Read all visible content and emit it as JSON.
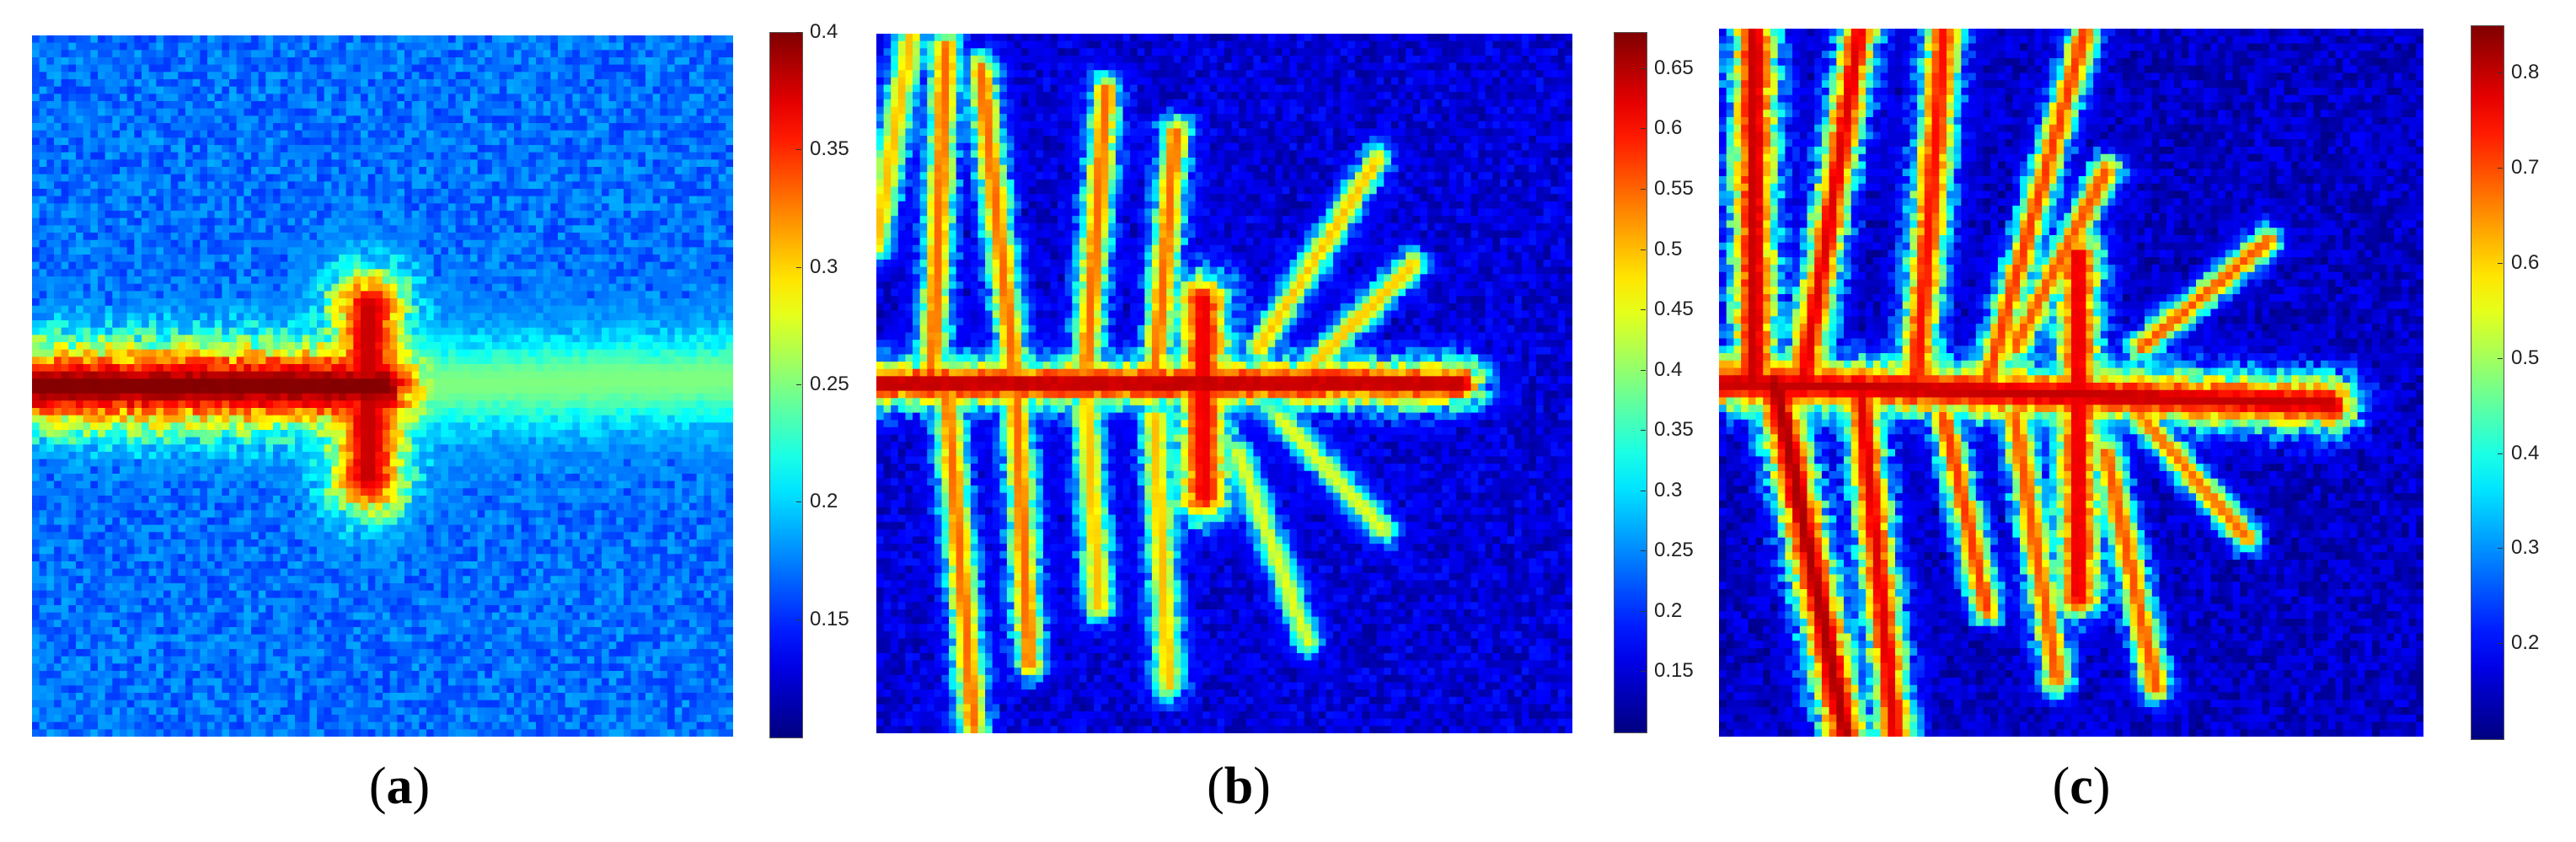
{
  "figure": {
    "panels": [
      {
        "caption_letter": "a"
      },
      {
        "caption_letter": "b"
      },
      {
        "caption_letter": "c"
      }
    ]
  },
  "chart_data": [
    {
      "type": "heatmap",
      "panel": "a",
      "title": "",
      "xlabel": "",
      "ylabel": "",
      "colormap": "jet",
      "colorbar": {
        "min": 0.1,
        "max": 0.4,
        "ticks": [
          "0.4",
          "0.35",
          "0.3",
          "0.25",
          "0.2",
          "0.15"
        ],
        "tick_values": [
          0.4,
          0.35,
          0.3,
          0.25,
          0.2,
          0.15
        ]
      },
      "description_values": {
        "background_level": 0.17,
        "crack_core_level": 0.4,
        "halo_level": 0.25
      },
      "pattern": "horizontal crack from left edge to center with short side branches and a wide fade to the right",
      "seed": 11,
      "branches": [
        {
          "start": [
            0.0,
            0.5
          ],
          "end": [
            0.5,
            0.5
          ],
          "level": 0.4,
          "width": 0.055
        },
        {
          "start": [
            0.5,
            0.5
          ],
          "end": [
            1.0,
            0.49
          ],
          "level": 0.25,
          "width": 0.06
        },
        {
          "start": [
            0.48,
            0.39
          ],
          "end": [
            0.48,
            0.63
          ],
          "level": 0.38,
          "width": 0.05
        }
      ]
    },
    {
      "type": "heatmap",
      "panel": "b",
      "title": "",
      "xlabel": "",
      "ylabel": "",
      "colormap": "jet",
      "colorbar": {
        "min": 0.1,
        "max": 0.68,
        "ticks": [
          "0.65",
          "0.6",
          "0.55",
          "0.5",
          "0.45",
          "0.4",
          "0.35",
          "0.3",
          "0.25",
          "0.2",
          "0.15"
        ],
        "tick_values": [
          0.65,
          0.6,
          0.55,
          0.5,
          0.45,
          0.4,
          0.35,
          0.3,
          0.25,
          0.2,
          0.15
        ]
      },
      "description_values": {
        "background_level": 0.15,
        "crack_core_level": 0.65
      },
      "pattern": "main horizontal crack with many dendritic branches",
      "seed": 23,
      "branches": [
        {
          "start": [
            0.0,
            0.5
          ],
          "end": [
            0.84,
            0.5
          ],
          "level": 0.65,
          "width": 0.03
        },
        {
          "start": [
            0.47,
            0.38
          ],
          "end": [
            0.47,
            0.66
          ],
          "level": 0.62,
          "width": 0.035
        },
        {
          "start": [
            0.08,
            0.5
          ],
          "end": [
            0.1,
            0.02
          ],
          "level": 0.55,
          "width": 0.02
        },
        {
          "start": [
            0.2,
            0.5
          ],
          "end": [
            0.15,
            0.05
          ],
          "level": 0.55,
          "width": 0.02
        },
        {
          "start": [
            0.3,
            0.5
          ],
          "end": [
            0.33,
            0.08
          ],
          "level": 0.55,
          "width": 0.02
        },
        {
          "start": [
            0.4,
            0.5
          ],
          "end": [
            0.43,
            0.14
          ],
          "level": 0.55,
          "width": 0.02
        },
        {
          "start": [
            0.55,
            0.45
          ],
          "end": [
            0.72,
            0.18
          ],
          "level": 0.5,
          "width": 0.018
        },
        {
          "start": [
            0.6,
            0.5
          ],
          "end": [
            0.77,
            0.33
          ],
          "level": 0.5,
          "width": 0.018
        },
        {
          "start": [
            0.1,
            0.5
          ],
          "end": [
            0.14,
            0.99
          ],
          "level": 0.55,
          "width": 0.02
        },
        {
          "start": [
            0.2,
            0.5
          ],
          "end": [
            0.22,
            0.9
          ],
          "level": 0.55,
          "width": 0.02
        },
        {
          "start": [
            0.3,
            0.5
          ],
          "end": [
            0.32,
            0.82
          ],
          "level": 0.5,
          "width": 0.02
        },
        {
          "start": [
            0.4,
            0.55
          ],
          "end": [
            0.42,
            0.93
          ],
          "level": 0.5,
          "width": 0.02
        },
        {
          "start": [
            0.52,
            0.6
          ],
          "end": [
            0.62,
            0.87
          ],
          "level": 0.45,
          "width": 0.018
        },
        {
          "start": [
            0.58,
            0.55
          ],
          "end": [
            0.73,
            0.71
          ],
          "level": 0.45,
          "width": 0.018
        },
        {
          "start": [
            0.0,
            0.3
          ],
          "end": [
            0.05,
            0.0
          ],
          "level": 0.5,
          "width": 0.02
        }
      ]
    },
    {
      "type": "heatmap",
      "panel": "c",
      "title": "",
      "xlabel": "",
      "ylabel": "",
      "colormap": "jet",
      "colorbar": {
        "min": 0.1,
        "max": 0.85,
        "ticks": [
          "0.8",
          "0.7",
          "0.6",
          "0.5",
          "0.4",
          "0.3",
          "0.2"
        ],
        "tick_values": [
          0.8,
          0.7,
          0.6,
          0.5,
          0.4,
          0.3,
          0.2
        ]
      },
      "description_values": {
        "background_level": 0.15,
        "crack_core_level": 0.8
      },
      "pattern": "main horizontal crack with thick dendritic branches reaching the edges",
      "seed": 37,
      "branches": [
        {
          "start": [
            0.0,
            0.5
          ],
          "end": [
            0.87,
            0.53
          ],
          "level": 0.8,
          "width": 0.035
        },
        {
          "start": [
            0.51,
            0.32
          ],
          "end": [
            0.51,
            0.8
          ],
          "level": 0.78,
          "width": 0.03
        },
        {
          "start": [
            0.05,
            0.5
          ],
          "end": [
            0.05,
            0.0
          ],
          "level": 0.8,
          "width": 0.03
        },
        {
          "start": [
            0.12,
            0.5
          ],
          "end": [
            0.2,
            0.0
          ],
          "level": 0.78,
          "width": 0.025
        },
        {
          "start": [
            0.28,
            0.5
          ],
          "end": [
            0.32,
            0.0
          ],
          "level": 0.75,
          "width": 0.025
        },
        {
          "start": [
            0.38,
            0.5
          ],
          "end": [
            0.52,
            0.0
          ],
          "level": 0.72,
          "width": 0.02
        },
        {
          "start": [
            0.42,
            0.45
          ],
          "end": [
            0.55,
            0.2
          ],
          "level": 0.7,
          "width": 0.02
        },
        {
          "start": [
            0.6,
            0.45
          ],
          "end": [
            0.78,
            0.3
          ],
          "level": 0.7,
          "width": 0.018
        },
        {
          "start": [
            0.08,
            0.5
          ],
          "end": [
            0.18,
            1.0
          ],
          "level": 0.82,
          "width": 0.03
        },
        {
          "start": [
            0.2,
            0.5
          ],
          "end": [
            0.25,
            1.0
          ],
          "level": 0.78,
          "width": 0.025
        },
        {
          "start": [
            0.32,
            0.55
          ],
          "end": [
            0.38,
            0.82
          ],
          "level": 0.72,
          "width": 0.02
        },
        {
          "start": [
            0.42,
            0.55
          ],
          "end": [
            0.48,
            0.92
          ],
          "level": 0.7,
          "width": 0.02
        },
        {
          "start": [
            0.55,
            0.6
          ],
          "end": [
            0.62,
            0.93
          ],
          "level": 0.7,
          "width": 0.02
        },
        {
          "start": [
            0.6,
            0.55
          ],
          "end": [
            0.75,
            0.72
          ],
          "level": 0.68,
          "width": 0.018
        }
      ]
    }
  ]
}
